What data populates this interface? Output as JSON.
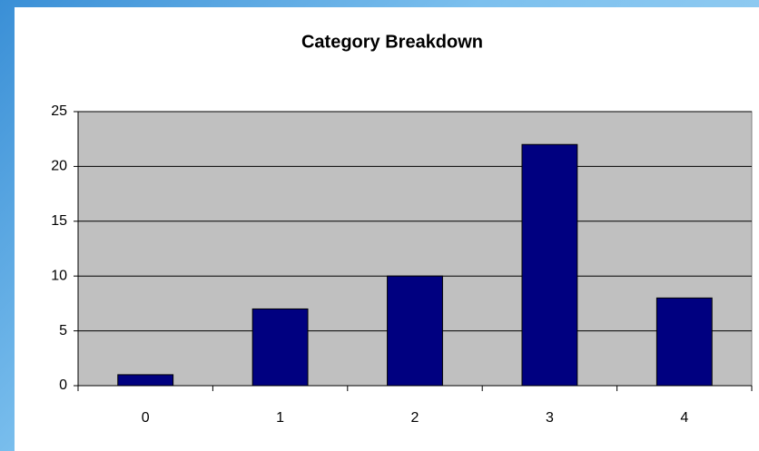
{
  "chart_data": {
    "type": "bar",
    "title": "Category Breakdown",
    "categories": [
      "0",
      "1",
      "2",
      "3",
      "4"
    ],
    "values": [
      1,
      7,
      10,
      22,
      8
    ],
    "color": "#000080",
    "ylim": [
      0,
      25
    ],
    "yticks": [
      0,
      5,
      10,
      15,
      20,
      25
    ],
    "grid": true
  }
}
